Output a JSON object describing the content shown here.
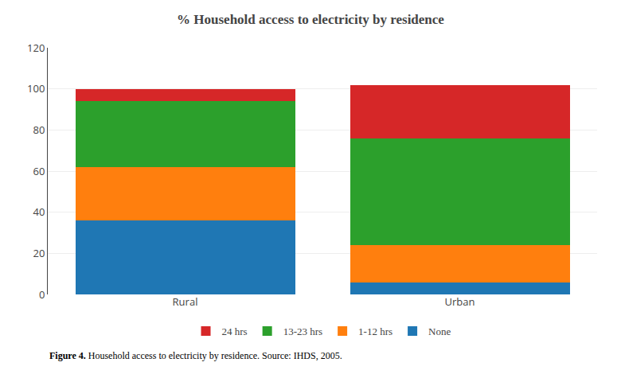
{
  "chart_data": {
    "type": "bar",
    "stacked": true,
    "title": "% Household access to electricity by residence",
    "categories": [
      "Rural",
      "Urban"
    ],
    "series": [
      {
        "name": "None",
        "values": [
          36,
          6
        ]
      },
      {
        "name": "1-12 hrs",
        "values": [
          26,
          18
        ]
      },
      {
        "name": "13-23 hrs",
        "values": [
          32,
          52
        ]
      },
      {
        "name": "24 hrs",
        "values": [
          6,
          26
        ]
      }
    ],
    "ylim": [
      0,
      120
    ],
    "yticks": [
      0,
      20,
      40,
      60,
      80,
      100,
      120
    ],
    "grid": true,
    "legend": "bottom",
    "annotations": [
      "Figure 4.",
      "Household access to electricity by residence. Source: IHDS, 2005."
    ]
  }
}
